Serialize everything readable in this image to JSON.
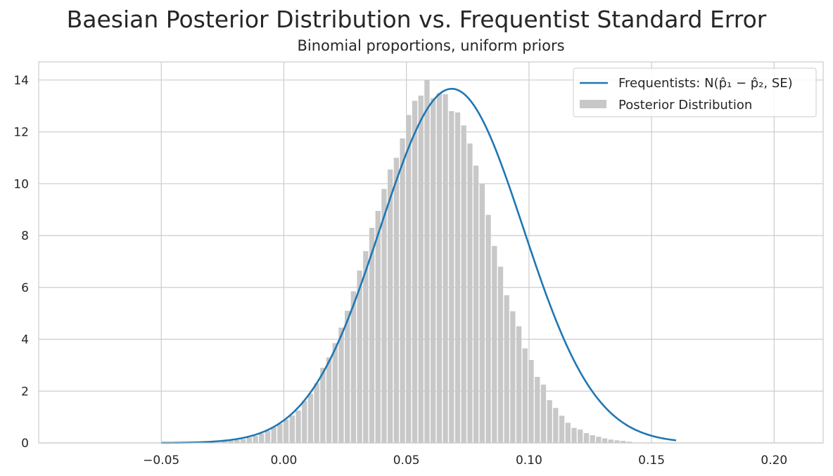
{
  "chart_data": {
    "type": "bar",
    "title": "Baesian Posterior Distribution vs. Frequentist Standard Error",
    "subtitle": "Binomial proportions, uniform priors",
    "xlim": [
      -0.1,
      0.22
    ],
    "ylim": [
      0,
      14.7
    ],
    "x_ticks": [
      -0.05,
      0.0,
      0.05,
      0.1,
      0.15,
      0.2
    ],
    "x_tick_labels": [
      "−0.05",
      "0.00",
      "0.05",
      "0.10",
      "0.15",
      "0.20"
    ],
    "y_ticks": [
      0,
      2,
      4,
      6,
      8,
      10,
      12,
      14
    ],
    "y_tick_labels": [
      "0",
      "2",
      "4",
      "6",
      "8",
      "10",
      "12",
      "14"
    ],
    "grid": true,
    "legend_position": "top-right",
    "series": [
      {
        "name": "Frequentists: N(p̂₁ − p̂₂, SE)",
        "kind": "line",
        "color": "#1f77b4",
        "mean": 0.0685,
        "sd": 0.0292,
        "x_range": [
          -0.05,
          0.16
        ]
      },
      {
        "name": "Posterior Distribution",
        "kind": "histogram",
        "color": "#c8c8c8",
        "bin_width": 0.0025,
        "bins": [
          {
            "x": -0.0241,
            "y": 0.06
          },
          {
            "x": -0.0216,
            "y": 0.08
          },
          {
            "x": -0.0191,
            "y": 0.11
          },
          {
            "x": -0.0166,
            "y": 0.15
          },
          {
            "x": -0.0141,
            "y": 0.2
          },
          {
            "x": -0.0116,
            "y": 0.27
          },
          {
            "x": -0.0091,
            "y": 0.36
          },
          {
            "x": -0.0066,
            "y": 0.47
          },
          {
            "x": -0.0041,
            "y": 0.6
          },
          {
            "x": -0.0016,
            "y": 0.74
          },
          {
            "x": 0.0009,
            "y": 0.9
          },
          {
            "x": 0.0034,
            "y": 1.06
          },
          {
            "x": 0.0059,
            "y": 1.25
          },
          {
            "x": 0.0084,
            "y": 1.62
          },
          {
            "x": 0.0109,
            "y": 1.9
          },
          {
            "x": 0.0134,
            "y": 2.3
          },
          {
            "x": 0.0159,
            "y": 2.9
          },
          {
            "x": 0.0184,
            "y": 3.3
          },
          {
            "x": 0.0209,
            "y": 3.85
          },
          {
            "x": 0.0234,
            "y": 4.45
          },
          {
            "x": 0.0259,
            "y": 5.1
          },
          {
            "x": 0.0284,
            "y": 5.85
          },
          {
            "x": 0.0309,
            "y": 6.65
          },
          {
            "x": 0.0334,
            "y": 7.4
          },
          {
            "x": 0.0359,
            "y": 8.3
          },
          {
            "x": 0.0384,
            "y": 8.95
          },
          {
            "x": 0.0409,
            "y": 9.8
          },
          {
            "x": 0.0434,
            "y": 10.55
          },
          {
            "x": 0.0459,
            "y": 11.0
          },
          {
            "x": 0.0484,
            "y": 11.75
          },
          {
            "x": 0.0509,
            "y": 12.65
          },
          {
            "x": 0.0534,
            "y": 13.2
          },
          {
            "x": 0.0559,
            "y": 13.4
          },
          {
            "x": 0.0584,
            "y": 14.0
          },
          {
            "x": 0.0609,
            "y": 13.3
          },
          {
            "x": 0.0634,
            "y": 13.5
          },
          {
            "x": 0.0659,
            "y": 13.45
          },
          {
            "x": 0.0684,
            "y": 12.8
          },
          {
            "x": 0.0709,
            "y": 12.75
          },
          {
            "x": 0.0734,
            "y": 12.25
          },
          {
            "x": 0.0759,
            "y": 11.55
          },
          {
            "x": 0.0784,
            "y": 10.7
          },
          {
            "x": 0.0809,
            "y": 10.0
          },
          {
            "x": 0.0834,
            "y": 8.8
          },
          {
            "x": 0.0859,
            "y": 7.6
          },
          {
            "x": 0.0884,
            "y": 6.8
          },
          {
            "x": 0.0909,
            "y": 5.7
          },
          {
            "x": 0.0934,
            "y": 5.08
          },
          {
            "x": 0.0959,
            "y": 4.5
          },
          {
            "x": 0.0984,
            "y": 3.65
          },
          {
            "x": 0.1009,
            "y": 3.2
          },
          {
            "x": 0.1034,
            "y": 2.55
          },
          {
            "x": 0.1059,
            "y": 2.25
          },
          {
            "x": 0.1084,
            "y": 1.65
          },
          {
            "x": 0.1109,
            "y": 1.35
          },
          {
            "x": 0.1134,
            "y": 1.05
          },
          {
            "x": 0.1159,
            "y": 0.78
          },
          {
            "x": 0.1184,
            "y": 0.58
          },
          {
            "x": 0.1209,
            "y": 0.52
          },
          {
            "x": 0.1234,
            "y": 0.38
          },
          {
            "x": 0.1259,
            "y": 0.3
          },
          {
            "x": 0.1284,
            "y": 0.24
          },
          {
            "x": 0.1309,
            "y": 0.18
          },
          {
            "x": 0.1334,
            "y": 0.13
          },
          {
            "x": 0.1359,
            "y": 0.1
          },
          {
            "x": 0.1384,
            "y": 0.08
          },
          {
            "x": 0.1409,
            "y": 0.05
          }
        ]
      }
    ]
  }
}
